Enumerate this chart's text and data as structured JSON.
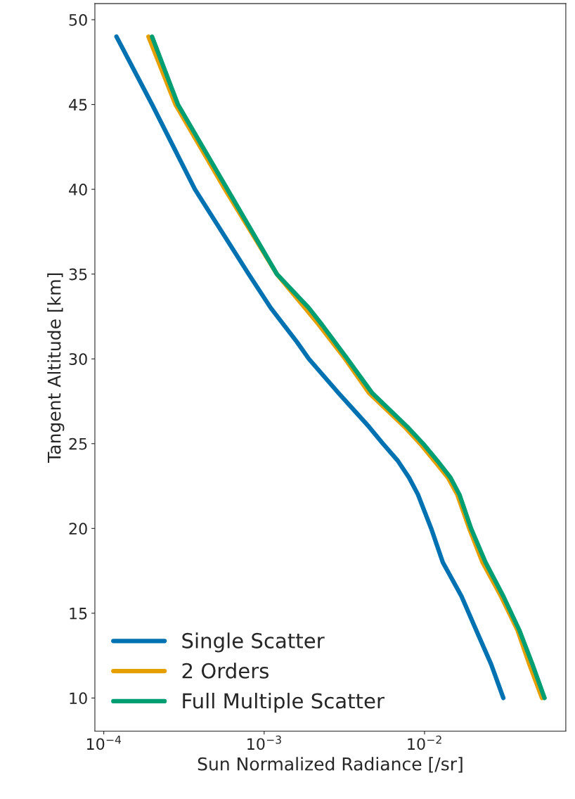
{
  "chart_data": {
    "type": "line",
    "xlabel": "Sun Normalized Radiance [/sr]",
    "ylabel": "Tangent Altitude [km]",
    "log": "x",
    "grid": false,
    "legend": "bottom left",
    "xlim": [
      8.8e-05,
      0.076
    ],
    "ylim": [
      8.05,
      50.95
    ],
    "xticks": [
      {
        "value": 0.0001,
        "label": "10$^{−4}$"
      },
      {
        "value": 0.001,
        "label": "10$^{−3}$"
      },
      {
        "value": 0.01,
        "label": "10$^{−2}$"
      }
    ],
    "yticks": [
      10,
      15,
      20,
      25,
      30,
      35,
      40,
      45,
      50
    ],
    "series": [
      {
        "name": "Single Scatter",
        "color": "#0072b2",
        "values": [
          49,
          45,
          40,
          35,
          33,
          31,
          30,
          28,
          26,
          25,
          24,
          23,
          22,
          20,
          18,
          16,
          14,
          12,
          10
        ],
        "x": [
          0.00012,
          0.0002,
          0.00037,
          0.0008,
          0.0011,
          0.0016,
          0.0019,
          0.0029,
          0.0045,
          0.0055,
          0.0068,
          0.008,
          0.0091,
          0.011,
          0.013,
          0.017,
          0.021,
          0.026,
          0.031
        ]
      },
      {
        "name": "2 Orders",
        "color": "#e69f00",
        "values": [
          49,
          45,
          40,
          35,
          33,
          32,
          30,
          28,
          26,
          25,
          24,
          23,
          22,
          20,
          18,
          16,
          14,
          12,
          10
        ],
        "x": [
          0.00019,
          0.00028,
          0.00057,
          0.0012,
          0.0018,
          0.0022,
          0.0032,
          0.0045,
          0.0075,
          0.0094,
          0.0115,
          0.014,
          0.016,
          0.019,
          0.023,
          0.03,
          0.038,
          0.045,
          0.054
        ]
      },
      {
        "name": "Full Multiple Scatter",
        "color": "#009e73",
        "values": [
          49,
          45,
          40,
          35,
          33,
          32,
          30,
          28,
          26,
          25,
          24,
          23,
          22,
          20,
          18,
          16,
          14,
          12,
          10
        ],
        "x": [
          0.0002,
          0.00029,
          0.00059,
          0.0012,
          0.0019,
          0.0023,
          0.0033,
          0.0047,
          0.0078,
          0.0098,
          0.012,
          0.0145,
          0.0165,
          0.0195,
          0.024,
          0.031,
          0.039,
          0.047,
          0.056
        ]
      }
    ]
  }
}
